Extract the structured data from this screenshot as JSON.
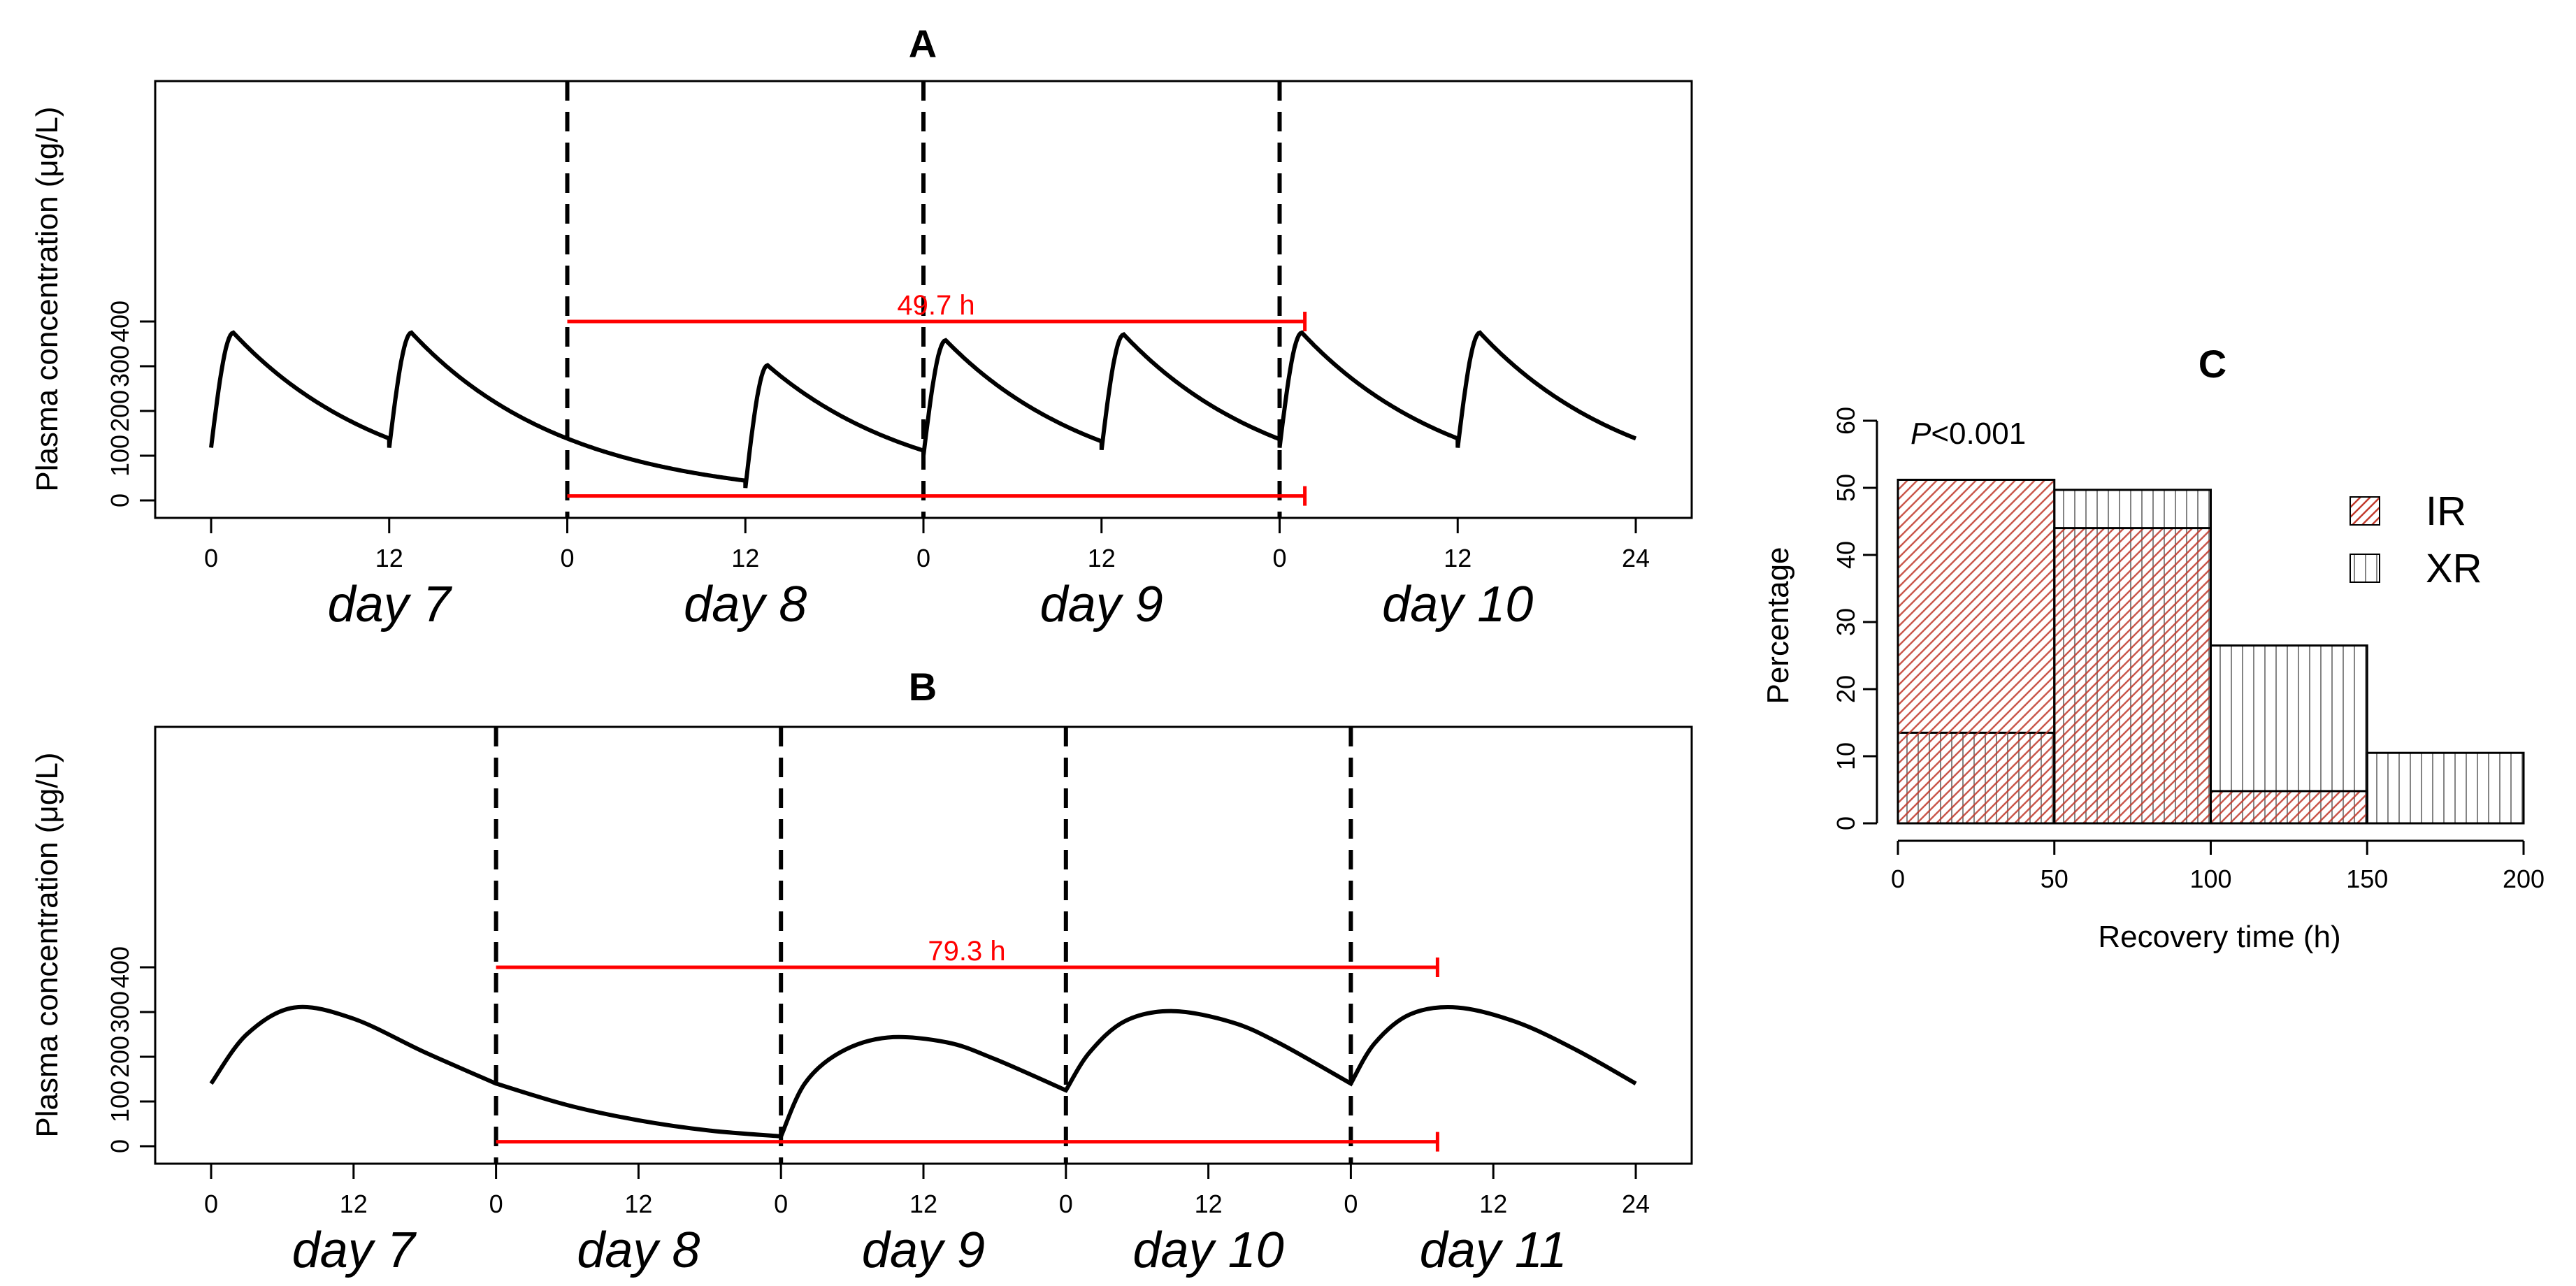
{
  "colors": {
    "line": "#000000",
    "annotation": "#ff0000",
    "ir_fill": "#c0392b",
    "frame": "#000000"
  },
  "chart_data": [
    {
      "id": "A",
      "type": "line",
      "title": "A",
      "ylabel": "Plasma concentration (μg/L)",
      "ylim": [
        0,
        400
      ],
      "yticks": [
        "0",
        "100",
        "200",
        "300",
        "400"
      ],
      "xlim": [
        0,
        96
      ],
      "xticks": [
        {
          "x": 0,
          "label": "0"
        },
        {
          "x": 12,
          "label": "12"
        },
        {
          "x": 24,
          "label": "0"
        },
        {
          "x": 36,
          "label": "12"
        },
        {
          "x": 48,
          "label": "0"
        },
        {
          "x": 60,
          "label": "12"
        },
        {
          "x": 72,
          "label": "0"
        },
        {
          "x": 84,
          "label": "12"
        },
        {
          "x": 96,
          "label": "24"
        }
      ],
      "day_labels": [
        {
          "x": 12,
          "label": "day 7"
        },
        {
          "x": 36,
          "label": "day 8"
        },
        {
          "x": 60,
          "label": "day 9"
        },
        {
          "x": 84,
          "label": "day 10"
        }
      ],
      "dashed_lines_x": [
        24,
        48,
        72
      ],
      "doses": [
        {
          "t": 0,
          "c0": 118,
          "peak": 375
        },
        {
          "t": 12,
          "c0": 118,
          "peak": 375
        },
        {
          "t": 36,
          "c0": 28,
          "peak": 302
        },
        {
          "t": 48,
          "c0": 100,
          "peak": 358
        },
        {
          "t": 60,
          "c0": 113,
          "peak": 371
        },
        {
          "t": 72,
          "c0": 118,
          "peak": 375
        },
        {
          "t": 84,
          "c0": 118,
          "peak": 375
        }
      ],
      "tmax_h": 1.5,
      "half_life_h": 7.3,
      "annotation": {
        "label": "49.7 h",
        "x_start": 24,
        "x_end": 73.7,
        "y_top": 400,
        "y_bottom": 10
      }
    },
    {
      "id": "B",
      "type": "line",
      "title": "B",
      "ylabel": "Plasma concentration (μg/L)",
      "ylim": [
        0,
        400
      ],
      "yticks": [
        "0",
        "100",
        "200",
        "300",
        "400"
      ],
      "xlim": [
        0,
        120
      ],
      "xticks": [
        {
          "x": 0,
          "label": "0"
        },
        {
          "x": 12,
          "label": "12"
        },
        {
          "x": 24,
          "label": "0"
        },
        {
          "x": 36,
          "label": "12"
        },
        {
          "x": 48,
          "label": "0"
        },
        {
          "x": 60,
          "label": "12"
        },
        {
          "x": 72,
          "label": "0"
        },
        {
          "x": 84,
          "label": "12"
        },
        {
          "x": 96,
          "label": "0"
        },
        {
          "x": 108,
          "label": "12"
        },
        {
          "x": 120,
          "label": "24"
        }
      ],
      "day_labels": [
        {
          "x": 12,
          "label": "day 7"
        },
        {
          "x": 36,
          "label": "day 8"
        },
        {
          "x": 60,
          "label": "day 9"
        },
        {
          "x": 84,
          "label": "day 10"
        },
        {
          "x": 108,
          "label": "day 11"
        }
      ],
      "dashed_lines_x": [
        24,
        48,
        72,
        96
      ],
      "key_points": [
        [
          0,
          140
        ],
        [
          3,
          250
        ],
        [
          7,
          310
        ],
        [
          12,
          285
        ],
        [
          18,
          210
        ],
        [
          24,
          140
        ],
        [
          30,
          92
        ],
        [
          36,
          58
        ],
        [
          42,
          35
        ],
        [
          48,
          22
        ],
        [
          50,
          140
        ],
        [
          53,
          210
        ],
        [
          57,
          243
        ],
        [
          62,
          232
        ],
        [
          66,
          195
        ],
        [
          72,
          125
        ],
        [
          74,
          210
        ],
        [
          77,
          280
        ],
        [
          81,
          302
        ],
        [
          86,
          277
        ],
        [
          90,
          230
        ],
        [
          96,
          140
        ],
        [
          98,
          230
        ],
        [
          101,
          295
        ],
        [
          105,
          310
        ],
        [
          110,
          277
        ],
        [
          115,
          215
        ],
        [
          120,
          140
        ]
      ],
      "annotation": {
        "label": "79.3 h",
        "x_start": 24,
        "x_end": 103.3,
        "y_top": 400,
        "y_bottom": 10
      }
    },
    {
      "id": "C",
      "type": "bar",
      "title": "C",
      "xlabel": "Recovery time (h)",
      "ylabel": "Percentage",
      "xlim": [
        0,
        200
      ],
      "ylim": [
        0,
        60
      ],
      "xticks": [
        "0",
        "50",
        "100",
        "150",
        "200"
      ],
      "yticks": [
        "0",
        "10",
        "20",
        "30",
        "40",
        "50",
        "60"
      ],
      "bin_edges": [
        0,
        50,
        100,
        150,
        200
      ],
      "series": [
        {
          "name": "XR",
          "values": [
            13.5,
            49.7,
            26.5,
            10.5
          ]
        },
        {
          "name": "IR",
          "values": [
            51.2,
            44.0,
            4.8,
            0.0
          ]
        }
      ],
      "annotation": {
        "prefix": "P",
        "rest": "<0.001"
      },
      "legend": [
        {
          "label": "IR",
          "pattern": "diagonal"
        },
        {
          "label": "XR",
          "pattern": "vertical"
        }
      ]
    }
  ]
}
